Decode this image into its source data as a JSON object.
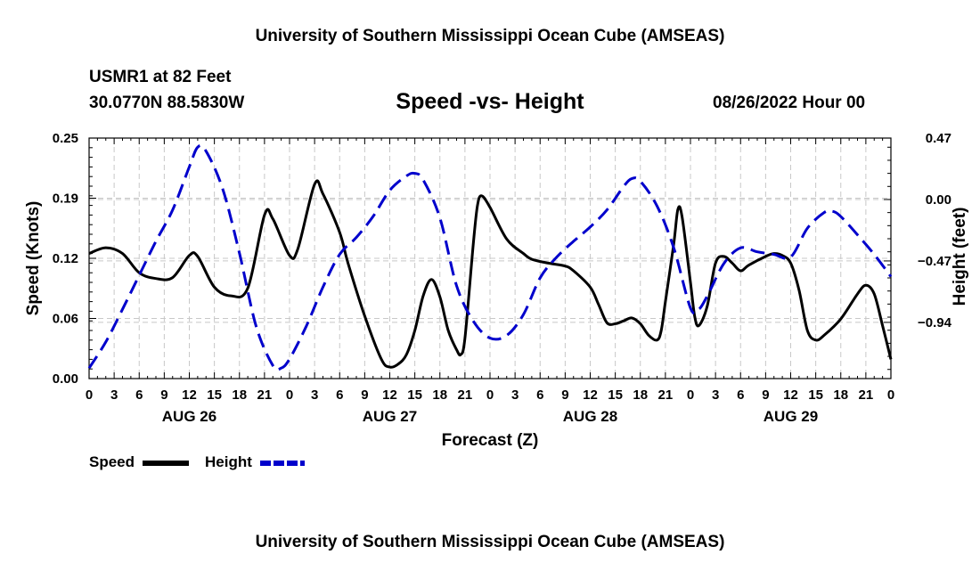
{
  "header": {
    "title": "University of Southern Mississippi Ocean Cube (AMSEAS)",
    "station": "USMR1 at 82 Feet",
    "coordinates": "30.0770N  88.5830W",
    "datetime": "08/26/2022 Hour 00"
  },
  "footer": {
    "title": "University of Southern Mississippi Ocean Cube (AMSEAS)"
  },
  "legend": {
    "speed_label": "Speed",
    "height_label": "Height"
  },
  "colors": {
    "speed": "#000000",
    "height": "#0000cc",
    "grid": "#c8c8c8"
  },
  "chart_data": {
    "type": "line",
    "title": "Speed -vs- Height",
    "xlabel": "Forecast (Z)",
    "ylabel": "Speed (Knots)",
    "y2label": "Height (feet)",
    "x_tick_labels": [
      "0",
      "3",
      "6",
      "9",
      "12",
      "15",
      "18",
      "21",
      "0",
      "3",
      "6",
      "9",
      "12",
      "15",
      "18",
      "21",
      "0",
      "3",
      "6",
      "9",
      "12",
      "15",
      "18",
      "21",
      "0",
      "3",
      "6",
      "9",
      "12",
      "15",
      "18",
      "21",
      "0"
    ],
    "day_labels": [
      {
        "label": "AUG 26",
        "hour": 12
      },
      {
        "label": "AUG 27",
        "hour": 36
      },
      {
        "label": "AUG 28",
        "hour": 60
      },
      {
        "label": "AUG 29",
        "hour": 84
      }
    ],
    "xlim": [
      0,
      96
    ],
    "ylim": [
      0,
      0.25
    ],
    "y_ticks": [
      "0.00",
      "0.06",
      "0.12",
      "0.19",
      "0.25"
    ],
    "y_tick_values": [
      0,
      0.0625,
      0.125,
      0.1875,
      0.25
    ],
    "y2lim": [
      -1.37,
      0.47
    ],
    "y2_ticks": [
      "0.47",
      "0.00",
      "−0.47",
      "−0.94"
    ],
    "y2_tick_values": [
      0.47,
      0.0,
      -0.47,
      -0.94
    ],
    "series": [
      {
        "name": "Speed",
        "axis": "left",
        "style": "solid",
        "points": [
          [
            0,
            0.13
          ],
          [
            2,
            0.136
          ],
          [
            4,
            0.13
          ],
          [
            6,
            0.11
          ],
          [
            8,
            0.104
          ],
          [
            10,
            0.105
          ],
          [
            12,
            0.128
          ],
          [
            13,
            0.127
          ],
          [
            15,
            0.095
          ],
          [
            17,
            0.086
          ],
          [
            19,
            0.094
          ],
          [
            21,
            0.17
          ],
          [
            22,
            0.166
          ],
          [
            24,
            0.128
          ],
          [
            25,
            0.135
          ],
          [
            27,
            0.202
          ],
          [
            28,
            0.192
          ],
          [
            30,
            0.152
          ],
          [
            31,
            0.12
          ],
          [
            33,
            0.065
          ],
          [
            35,
            0.02
          ],
          [
            36,
            0.012
          ],
          [
            37,
            0.015
          ],
          [
            38,
            0.025
          ],
          [
            39,
            0.05
          ],
          [
            40,
            0.086
          ],
          [
            41,
            0.103
          ],
          [
            42,
            0.085
          ],
          [
            43,
            0.05
          ],
          [
            44,
            0.03
          ],
          [
            44.5,
            0.025
          ],
          [
            45,
            0.042
          ],
          [
            46,
            0.14
          ],
          [
            46.5,
            0.18
          ],
          [
            47,
            0.19
          ],
          [
            48,
            0.178
          ],
          [
            50,
            0.145
          ],
          [
            52,
            0.13
          ],
          [
            53,
            0.124
          ],
          [
            55,
            0.12
          ],
          [
            57,
            0.117
          ],
          [
            58,
            0.112
          ],
          [
            60,
            0.095
          ],
          [
            61,
            0.077
          ],
          [
            62,
            0.058
          ],
          [
            63,
            0.057
          ],
          [
            64,
            0.06
          ],
          [
            65,
            0.063
          ],
          [
            66,
            0.057
          ],
          [
            67,
            0.045
          ],
          [
            68,
            0.04
          ],
          [
            68.5,
            0.05
          ],
          [
            69,
            0.08
          ],
          [
            70,
            0.14
          ],
          [
            70.5,
            0.176
          ],
          [
            71,
            0.168
          ],
          [
            72,
            0.1
          ],
          [
            72.5,
            0.065
          ],
          [
            73,
            0.055
          ],
          [
            74,
            0.075
          ],
          [
            75,
            0.12
          ],
          [
            76,
            0.127
          ],
          [
            77,
            0.12
          ],
          [
            78,
            0.112
          ],
          [
            79,
            0.118
          ],
          [
            81,
            0.127
          ],
          [
            82,
            0.13
          ],
          [
            83,
            0.128
          ],
          [
            84,
            0.12
          ],
          [
            85,
            0.092
          ],
          [
            86,
            0.05
          ],
          [
            87,
            0.04
          ],
          [
            88,
            0.045
          ],
          [
            90,
            0.062
          ],
          [
            92,
            0.088
          ],
          [
            93,
            0.097
          ],
          [
            94,
            0.088
          ],
          [
            95,
            0.055
          ],
          [
            96,
            0.02
          ]
        ]
      },
      {
        "name": "Height",
        "axis": "right",
        "style": "dashed",
        "points": [
          [
            0,
            -1.29
          ],
          [
            2,
            -1.09
          ],
          [
            4,
            -0.84
          ],
          [
            6,
            -0.58
          ],
          [
            8,
            -0.32
          ],
          [
            10,
            -0.08
          ],
          [
            12,
            0.25
          ],
          [
            13,
            0.4
          ],
          [
            14,
            0.37
          ],
          [
            16,
            0.08
          ],
          [
            18,
            -0.41
          ],
          [
            20,
            -0.97
          ],
          [
            22,
            -1.27
          ],
          [
            23,
            -1.29
          ],
          [
            24,
            -1.22
          ],
          [
            26,
            -0.97
          ],
          [
            28,
            -0.67
          ],
          [
            30,
            -0.42
          ],
          [
            32,
            -0.29
          ],
          [
            34,
            -0.13
          ],
          [
            36,
            0.07
          ],
          [
            38,
            0.18
          ],
          [
            39,
            0.2
          ],
          [
            40,
            0.15
          ],
          [
            42,
            -0.14
          ],
          [
            44,
            -0.66
          ],
          [
            46,
            -0.93
          ],
          [
            48,
            -1.06
          ],
          [
            50,
            -1.04
          ],
          [
            52,
            -0.88
          ],
          [
            54,
            -0.6
          ],
          [
            56,
            -0.44
          ],
          [
            58,
            -0.32
          ],
          [
            60,
            -0.21
          ],
          [
            62,
            -0.08
          ],
          [
            64,
            0.1
          ],
          [
            65,
            0.16
          ],
          [
            66,
            0.14
          ],
          [
            68,
            -0.05
          ],
          [
            70,
            -0.37
          ],
          [
            72,
            -0.83
          ],
          [
            73,
            -0.84
          ],
          [
            74,
            -0.74
          ],
          [
            76,
            -0.49
          ],
          [
            78,
            -0.37
          ],
          [
            80,
            -0.4
          ],
          [
            82,
            -0.42
          ],
          [
            84,
            -0.44
          ],
          [
            86,
            -0.22
          ],
          [
            88,
            -0.1
          ],
          [
            89,
            -0.09
          ],
          [
            90,
            -0.13
          ],
          [
            92,
            -0.27
          ],
          [
            94,
            -0.42
          ],
          [
            96,
            -0.59
          ]
        ]
      }
    ]
  }
}
